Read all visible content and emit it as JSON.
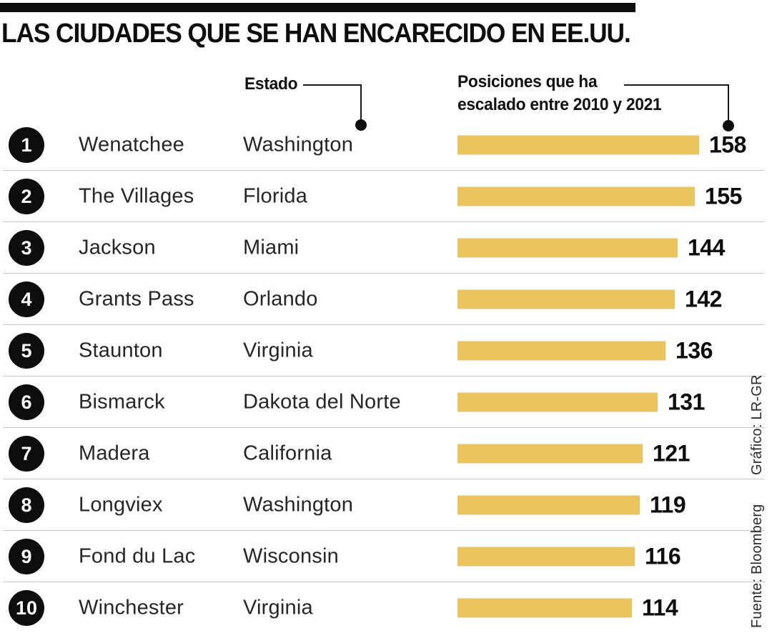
{
  "header": {
    "title": "LAS CIUDADES QUE SE HAN ENCARECIDO EN EE.UU."
  },
  "annotations": {
    "state_column_label": "Estado",
    "bar_column_label_line1": "Posiciones que ha",
    "bar_column_label_line2": "escalado entre 2010 y 2021"
  },
  "credits": {
    "graphic": "Gráfico: LR-GR",
    "source": "Fuente: Bloomberg"
  },
  "colors": {
    "bar": "#e9c45f",
    "badge": "#0d0d0d",
    "separator": "#c9c9c9",
    "text": "#262626"
  },
  "chart_data": {
    "type": "bar",
    "orientation": "horizontal",
    "title": "LAS CIUDADES QUE SE HAN ENCARECIDO EN EE.UU.",
    "value_axis_label": "Posiciones que ha escalado entre 2010 y 2021",
    "category_axis_label": "Estado",
    "xlim": [
      0,
      158
    ],
    "grid": false,
    "legend": "none",
    "rows": [
      {
        "rank": "1",
        "city": "Wenatchee",
        "state": "Washington",
        "value": 158
      },
      {
        "rank": "2",
        "city": "The Villages",
        "state": "Florida",
        "value": 155
      },
      {
        "rank": "3",
        "city": "Jackson",
        "state": "Miami",
        "value": 144
      },
      {
        "rank": "4",
        "city": "Grants Pass",
        "state": "Orlando",
        "value": 142
      },
      {
        "rank": "5",
        "city": "Staunton",
        "state": "Virginia",
        "value": 136
      },
      {
        "rank": "6",
        "city": "Bismarck",
        "state": "Dakota del Norte",
        "value": 131
      },
      {
        "rank": "7",
        "city": "Madera",
        "state": "California",
        "value": 121
      },
      {
        "rank": "8",
        "city": "Longviex",
        "state": "Washington",
        "value": 119
      },
      {
        "rank": "9",
        "city": "Fond du Lac",
        "state": "Wisconsin",
        "value": 116
      },
      {
        "rank": "10",
        "city": "Winchester",
        "state": "Virginia",
        "value": 114
      }
    ],
    "source": "Bloomberg",
    "graphic_credit": "LR-GR"
  }
}
